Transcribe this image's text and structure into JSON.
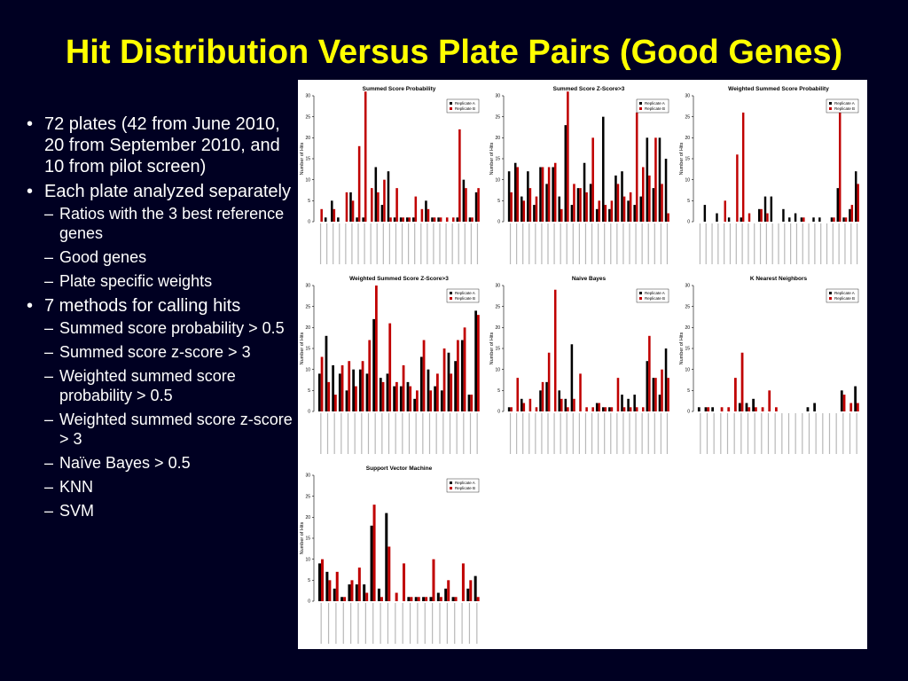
{
  "slide": {
    "title": "Hit Distribution Versus Plate Pairs (Good Genes)"
  },
  "bullets": [
    {
      "text": "72 plates (42 from June 2010, 20 from September 2010, and 10 from pilot screen)",
      "sub": []
    },
    {
      "text": "Each plate analyzed separately",
      "sub": [
        "Ratios with the 3 best reference genes",
        "Good genes",
        "Plate specific weights"
      ]
    },
    {
      "text": "7 methods for calling hits",
      "sub": [
        "Summed score probability > 0.5",
        "Summed score z-score > 3",
        "Weighted summed score probability > 0.5",
        "Weighted summed score z-score > 3",
        "Naïve Bayes > 0.5",
        "KNN",
        "SVM"
      ]
    }
  ],
  "colors": {
    "background": "#000022",
    "title": "#ffff00",
    "replicate_a": "#000000",
    "replicate_b": "#c00000"
  },
  "chart_data": [
    {
      "type": "bar",
      "title": "Summed Score Probability",
      "ylabel": "Number of Hits",
      "ylim": [
        0,
        30
      ],
      "yticks": [
        0,
        5,
        10,
        15,
        20,
        25,
        30
      ],
      "legend_position": "top-right",
      "series": [
        {
          "name": "Replicate A",
          "values": [
            0,
            1,
            5,
            1,
            0,
            7,
            1,
            1,
            0,
            13,
            4,
            12,
            1,
            1,
            1,
            1,
            0,
            5,
            1,
            1,
            0,
            0,
            1,
            10,
            1,
            7
          ]
        },
        {
          "name": "Replicate B",
          "values": [
            3,
            0,
            3,
            0,
            7,
            5,
            18,
            31,
            8,
            7,
            10,
            1,
            8,
            1,
            1,
            6,
            3,
            3,
            1,
            1,
            1,
            1,
            22,
            8,
            1,
            8
          ]
        }
      ]
    },
    {
      "type": "bar",
      "title": "Summed Score Z-Score>3",
      "ylabel": "Number of Hits",
      "ylim": [
        0,
        30
      ],
      "yticks": [
        0,
        5,
        10,
        15,
        20,
        25,
        30
      ],
      "legend_position": "top-right",
      "series": [
        {
          "name": "Replicate A",
          "values": [
            12,
            14,
            6,
            12,
            4,
            13,
            9,
            13,
            6,
            23,
            4,
            8,
            14,
            9,
            3,
            25,
            3,
            11,
            12,
            5,
            4,
            6,
            20,
            8,
            20,
            15
          ]
        },
        {
          "name": "Replicate B",
          "values": [
            7,
            13,
            5,
            8,
            6,
            13,
            13,
            14,
            3,
            31,
            9,
            8,
            7,
            20,
            5,
            4,
            5,
            9,
            6,
            7,
            26,
            13,
            11,
            20,
            9,
            2
          ]
        }
      ]
    },
    {
      "type": "bar",
      "title": "Weighted Summed Score Probability",
      "ylabel": "Number of Hits",
      "ylim": [
        0,
        30
      ],
      "yticks": [
        0,
        5,
        10,
        15,
        20,
        25,
        30
      ],
      "legend_position": "top-right",
      "series": [
        {
          "name": "Replicate A",
          "values": [
            0,
            4,
            0,
            2,
            0,
            1,
            0,
            1,
            0,
            0,
            3,
            6,
            6,
            0,
            3,
            1,
            2,
            1,
            0,
            1,
            1,
            0,
            1,
            8,
            1,
            3,
            12
          ]
        },
        {
          "name": "Replicate B",
          "values": [
            0,
            0,
            0,
            0,
            5,
            0,
            16,
            26,
            2,
            0,
            3,
            2,
            0,
            0,
            0,
            0,
            0,
            1,
            0,
            0,
            0,
            0,
            1,
            27,
            1,
            4,
            9
          ]
        }
      ]
    },
    {
      "type": "bar",
      "title": "Weighted Summed Score Z-Score>3",
      "ylabel": "Number of Hits",
      "ylim": [
        0,
        30
      ],
      "yticks": [
        0,
        5,
        10,
        15,
        20,
        25,
        30
      ],
      "legend_position": "top-right",
      "series": [
        {
          "name": "Replicate A",
          "values": [
            9,
            18,
            11,
            9,
            5,
            10,
            10,
            9,
            22,
            8,
            9,
            6,
            6,
            7,
            3,
            13,
            10,
            6,
            5,
            14,
            12,
            17,
            4,
            24
          ]
        },
        {
          "name": "Replicate B",
          "values": [
            13,
            7,
            4,
            11,
            12,
            6,
            12,
            17,
            30,
            7,
            21,
            7,
            11,
            6,
            5,
            17,
            5,
            9,
            15,
            9,
            17,
            20,
            4,
            23
          ]
        }
      ]
    },
    {
      "type": "bar",
      "title": "Naive Bayes",
      "ylabel": "Number of Hits",
      "ylim": [
        0,
        30
      ],
      "yticks": [
        0,
        5,
        10,
        15,
        20,
        25,
        30
      ],
      "legend_position": "top-right",
      "series": [
        {
          "name": "Replicate A",
          "values": [
            1,
            0,
            3,
            0,
            0,
            5,
            7,
            0,
            5,
            3,
            16,
            0,
            0,
            0,
            2,
            1,
            1,
            0,
            4,
            3,
            4,
            0,
            12,
            8,
            4,
            15
          ]
        },
        {
          "name": "Replicate B",
          "values": [
            1,
            8,
            2,
            3,
            1,
            7,
            14,
            29,
            3,
            1,
            3,
            9,
            1,
            1,
            2,
            1,
            1,
            8,
            1,
            1,
            1,
            1,
            18,
            8,
            10,
            8
          ]
        }
      ]
    },
    {
      "type": "bar",
      "title": "K Nearest Neighbors",
      "ylabel": "Number of Hits",
      "ylim": [
        0,
        30
      ],
      "yticks": [
        0,
        5,
        10,
        15,
        20,
        25,
        30
      ],
      "legend_position": "top-right",
      "series": [
        {
          "name": "Replicate A",
          "values": [
            1,
            1,
            1,
            0,
            0,
            0,
            2,
            2,
            3,
            0,
            0,
            0,
            0,
            0,
            0,
            0,
            1,
            2,
            0,
            0,
            0,
            5,
            0,
            6
          ]
        },
        {
          "name": "Replicate B",
          "values": [
            0,
            1,
            0,
            1,
            1,
            8,
            14,
            1,
            1,
            1,
            5,
            1,
            0,
            0,
            0,
            0,
            0,
            0,
            0,
            0,
            0,
            4,
            2,
            2
          ]
        }
      ]
    },
    {
      "type": "bar",
      "title": "Support Vector Machine",
      "ylabel": "Number of Hits",
      "ylim": [
        0,
        30
      ],
      "yticks": [
        0,
        5,
        10,
        15,
        20,
        25,
        30
      ],
      "legend_position": "top-right",
      "series": [
        {
          "name": "Replicate A",
          "values": [
            9,
            7,
            3,
            1,
            4,
            4,
            4,
            18,
            3,
            21,
            0,
            0,
            1,
            1,
            1,
            1,
            2,
            3,
            1,
            0,
            3,
            6
          ]
        },
        {
          "name": "Replicate B",
          "values": [
            10,
            5,
            7,
            1,
            5,
            8,
            2,
            23,
            1,
            13,
            2,
            9,
            1,
            1,
            1,
            10,
            1,
            5,
            1,
            9,
            5,
            1
          ]
        }
      ]
    }
  ]
}
